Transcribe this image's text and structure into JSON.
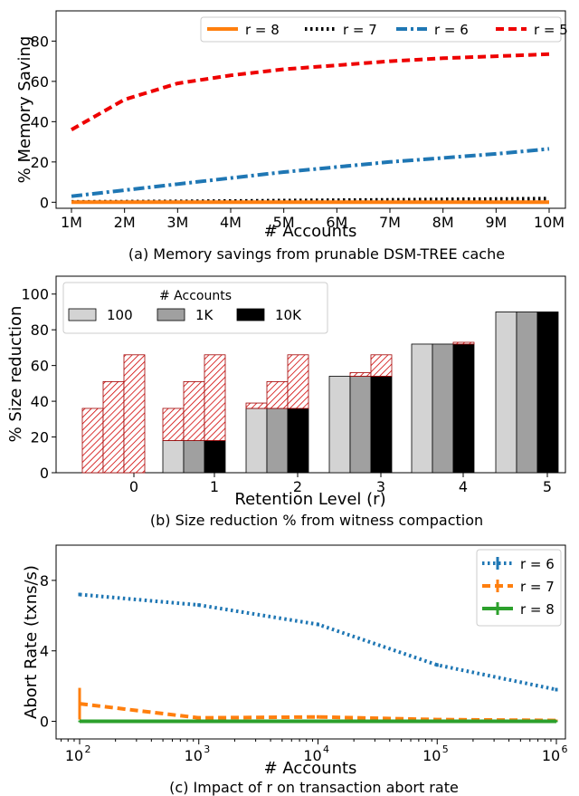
{
  "chart_data": [
    {
      "type": "line",
      "caption": "(a) Memory savings from prunable DSM-TREE cache",
      "xlabel": "# Accounts",
      "ylabel": "% Memory Saving",
      "categories": [
        "1M",
        "2M",
        "3M",
        "4M",
        "5M",
        "6M",
        "7M",
        "8M",
        "9M",
        "10M"
      ],
      "ylim": [
        -3,
        95
      ],
      "yticks": [
        "0",
        "20",
        "40",
        "60",
        "80"
      ],
      "legend": "top-right",
      "grid": false,
      "series": [
        {
          "name": "r = 8",
          "color": "#ff7f0e",
          "style": "solid",
          "values": [
            0,
            0,
            0,
            0,
            0,
            0,
            0,
            0,
            0,
            0
          ]
        },
        {
          "name": "r = 7",
          "color": "#000000",
          "style": "dotted",
          "values": [
            0.2,
            0.3,
            0.4,
            0.6,
            0.8,
            1.0,
            1.2,
            1.4,
            1.6,
            1.8
          ]
        },
        {
          "name": "r = 6",
          "color": "#1f77b4",
          "style": "dashdot",
          "values": [
            3,
            6,
            9,
            12,
            15,
            17.5,
            20,
            22,
            24,
            26.5
          ]
        },
        {
          "name": "r = 5",
          "color": "#ee0000",
          "style": "dashed",
          "values": [
            36,
            51,
            59,
            63,
            66,
            68,
            70,
            71.5,
            72.5,
            73.5
          ]
        }
      ]
    },
    {
      "type": "bar",
      "caption": "(b) Size reduction % from witness compaction",
      "xlabel": "Retention Level (r)",
      "ylabel": "% Size reduction",
      "categories": [
        "0",
        "1",
        "2",
        "3",
        "4",
        "5"
      ],
      "ylim": [
        0,
        110
      ],
      "yticks": [
        "0",
        "20",
        "40",
        "60",
        "80",
        "100"
      ],
      "legend_title": "# Accounts",
      "legend": "top-left",
      "grid": false,
      "series": [
        {
          "name": "100",
          "color": "#d3d3d3",
          "values": [
            0,
            18,
            36,
            54,
            72,
            90
          ],
          "hatched_total": [
            36,
            36,
            39,
            54,
            72,
            90
          ]
        },
        {
          "name": "1K",
          "color": "#a0a0a0",
          "values": [
            0,
            18,
            36,
            54,
            72,
            90
          ],
          "hatched_total": [
            51,
            51,
            51,
            56,
            72,
            90
          ]
        },
        {
          "name": "10K",
          "color": "#000000",
          "values": [
            0,
            18,
            36,
            54,
            72,
            90
          ],
          "hatched_total": [
            66,
            66,
            66,
            66,
            73,
            90
          ]
        }
      ]
    },
    {
      "type": "line",
      "caption": "(c) Impact of r on transaction abort rate",
      "xlabel": "# Accounts",
      "ylabel": "Abort Rate (txns/s)",
      "x": [
        100,
        1000,
        10000,
        100000,
        1000000
      ],
      "xticks": [
        "10",
        "10",
        "10",
        "10",
        "10"
      ],
      "xtick_exponents": [
        "2",
        "3",
        "4",
        "5",
        "6"
      ],
      "xscale": "log",
      "ylim": [
        -1,
        10
      ],
      "yticks": [
        "0",
        "4",
        "8"
      ],
      "legend": "top-right",
      "grid": false,
      "series": [
        {
          "name": "r = 6",
          "color": "#1f77b4",
          "style": "dotted",
          "values": [
            7.2,
            6.6,
            5.5,
            3.2,
            1.8
          ],
          "errors": [
            0.1,
            0.1,
            0.1,
            0.1,
            0.1
          ]
        },
        {
          "name": "r = 7",
          "color": "#ff7f0e",
          "style": "dashed",
          "values": [
            1.0,
            0.2,
            0.25,
            0.1,
            0.05
          ],
          "errors": [
            0.9,
            0.1,
            0.1,
            0.05,
            0.05
          ]
        },
        {
          "name": "r = 8",
          "color": "#2ca02c",
          "style": "solid",
          "values": [
            0,
            0,
            0,
            0,
            0
          ],
          "errors": [
            0.05,
            0.05,
            0.05,
            0.05,
            0.05
          ]
        }
      ]
    }
  ]
}
